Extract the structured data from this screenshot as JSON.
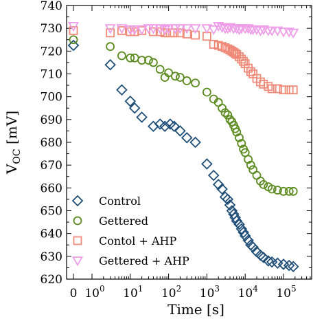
{
  "chart_data": {
    "type": "scatter",
    "xscale": "log (symlog, linear near 0)",
    "xlabel": "Time [s]",
    "ylabel_base": "V",
    "ylabel_sub": "OC",
    "ylabel_unit": " [mV]",
    "ylim": [
      620,
      740
    ],
    "xlim": [
      -0.6,
      200000
    ],
    "y_ticks": [
      "620",
      "630",
      "640",
      "650",
      "660",
      "670",
      "680",
      "690",
      "700",
      "710",
      "720",
      "730",
      "740"
    ],
    "x_ticks": [
      {
        "base": "0",
        "exp": ""
      },
      {
        "base": "10",
        "exp": "0"
      },
      {
        "base": "10",
        "exp": "1"
      },
      {
        "base": "10",
        "exp": "2"
      },
      {
        "base": "10",
        "exp": "3"
      },
      {
        "base": "10",
        "exp": "4"
      },
      {
        "base": "10",
        "exp": "5"
      }
    ],
    "legend_position": "lower-left",
    "series": [
      {
        "name": "Control",
        "marker": "diamond",
        "color": "#1f4e79",
        "points": [
          [
            0,
            722.5
          ],
          [
            3,
            714
          ],
          [
            6,
            703
          ],
          [
            10,
            698
          ],
          [
            13,
            695
          ],
          [
            20,
            691
          ],
          [
            40,
            687
          ],
          [
            60,
            688
          ],
          [
            80,
            687
          ],
          [
            110,
            688
          ],
          [
            140,
            687
          ],
          [
            200,
            685
          ],
          [
            300,
            682
          ],
          [
            500,
            680
          ],
          [
            1000,
            670.5
          ],
          [
            1500,
            665.5
          ],
          [
            2000,
            661.5
          ],
          [
            2500,
            659.5
          ],
          [
            3000,
            656
          ],
          [
            3500,
            655
          ],
          [
            4000,
            652.5
          ],
          [
            4500,
            650
          ],
          [
            5000,
            648.5
          ],
          [
            5500,
            647
          ],
          [
            6000,
            645.5
          ],
          [
            7000,
            644
          ],
          [
            8000,
            642
          ],
          [
            9000,
            640.5
          ],
          [
            10000,
            639
          ],
          [
            12000,
            637
          ],
          [
            14000,
            635
          ],
          [
            16000,
            634
          ],
          [
            20000,
            632
          ],
          [
            25000,
            630.5
          ],
          [
            30000,
            629.5
          ],
          [
            40000,
            628
          ],
          [
            50000,
            627.5
          ],
          [
            70000,
            627
          ],
          [
            100000,
            626.5
          ],
          [
            140000,
            626
          ],
          [
            180000,
            625.5
          ]
        ]
      },
      {
        "name": "Gettered",
        "marker": "circle",
        "color": "#5a8a1e",
        "points": [
          [
            0,
            725
          ],
          [
            3,
            722
          ],
          [
            6,
            718
          ],
          [
            10,
            717
          ],
          [
            13,
            717
          ],
          [
            20,
            716
          ],
          [
            30,
            716
          ],
          [
            40,
            715
          ],
          [
            60,
            712
          ],
          [
            80,
            708.5
          ],
          [
            100,
            710.5
          ],
          [
            150,
            709
          ],
          [
            200,
            708.5
          ],
          [
            300,
            707
          ],
          [
            500,
            706
          ],
          [
            1000,
            702
          ],
          [
            1500,
            699
          ],
          [
            2000,
            697.5
          ],
          [
            2500,
            695
          ],
          [
            3000,
            693
          ],
          [
            3500,
            692
          ],
          [
            4000,
            690
          ],
          [
            4500,
            689
          ],
          [
            5000,
            687.5
          ],
          [
            5500,
            686
          ],
          [
            6000,
            684.5
          ],
          [
            7000,
            682
          ],
          [
            8000,
            679.5
          ],
          [
            9000,
            677
          ],
          [
            10000,
            675.5
          ],
          [
            12000,
            672.5
          ],
          [
            14000,
            670
          ],
          [
            16000,
            668
          ],
          [
            20000,
            665.5
          ],
          [
            25000,
            663
          ],
          [
            30000,
            661.5
          ],
          [
            40000,
            660.5
          ],
          [
            50000,
            659.5
          ],
          [
            70000,
            659
          ],
          [
            100000,
            658.5
          ],
          [
            140000,
            658.5
          ],
          [
            180000,
            658.5
          ]
        ]
      },
      {
        "name": "Contol + AHP",
        "marker": "square",
        "color": "#f08a78",
        "points": [
          [
            0,
            729
          ],
          [
            3,
            728
          ],
          [
            6,
            729
          ],
          [
            10,
            728.5
          ],
          [
            13,
            728.5
          ],
          [
            20,
            729
          ],
          [
            40,
            728.5
          ],
          [
            60,
            728.5
          ],
          [
            80,
            728
          ],
          [
            110,
            728
          ],
          [
            140,
            728
          ],
          [
            200,
            728
          ],
          [
            300,
            727.5
          ],
          [
            500,
            727
          ],
          [
            1000,
            726.5
          ],
          [
            1500,
            723
          ],
          [
            2000,
            722.5
          ],
          [
            2500,
            722
          ],
          [
            3000,
            721.5
          ],
          [
            3500,
            721
          ],
          [
            4000,
            720.5
          ],
          [
            4500,
            720
          ],
          [
            5000,
            719.5
          ],
          [
            5500,
            719
          ],
          [
            6000,
            718.5
          ],
          [
            7000,
            717.5
          ],
          [
            8000,
            716.5
          ],
          [
            9000,
            715.5
          ],
          [
            10000,
            714.5
          ],
          [
            12000,
            712.5
          ],
          [
            14000,
            711
          ],
          [
            16000,
            710
          ],
          [
            20000,
            708
          ],
          [
            25000,
            706.5
          ],
          [
            30000,
            705.5
          ],
          [
            40000,
            704.5
          ],
          [
            50000,
            703.5
          ],
          [
            70000,
            703.5
          ],
          [
            100000,
            703
          ],
          [
            140000,
            703
          ],
          [
            180000,
            703
          ]
        ]
      },
      {
        "name": "Gettered + AHP",
        "marker": "triangle-down",
        "color": "#ee9ee8",
        "points": [
          [
            0,
            731
          ],
          [
            3,
            730
          ],
          [
            6,
            730
          ],
          [
            10,
            729.5
          ],
          [
            13,
            729.5
          ],
          [
            20,
            729.5
          ],
          [
            30,
            730
          ],
          [
            40,
            730
          ],
          [
            60,
            730
          ],
          [
            80,
            729.5
          ],
          [
            100,
            730
          ],
          [
            150,
            730
          ],
          [
            200,
            730
          ],
          [
            300,
            730
          ],
          [
            500,
            730
          ],
          [
            1000,
            730
          ],
          [
            1500,
            729.5
          ],
          [
            2000,
            731
          ],
          [
            2500,
            730.5
          ],
          [
            3000,
            730
          ],
          [
            3500,
            730
          ],
          [
            4000,
            730.5
          ],
          [
            5000,
            730
          ],
          [
            6000,
            730
          ],
          [
            7000,
            729.5
          ],
          [
            8000,
            730
          ],
          [
            10000,
            730
          ],
          [
            12000,
            730
          ],
          [
            14000,
            729.5
          ],
          [
            16000,
            729.5
          ],
          [
            20000,
            729.5
          ],
          [
            25000,
            729
          ],
          [
            30000,
            729.5
          ],
          [
            40000,
            729
          ],
          [
            50000,
            729
          ],
          [
            70000,
            729
          ],
          [
            100000,
            728.5
          ],
          [
            140000,
            728.5
          ],
          [
            180000,
            728
          ]
        ]
      }
    ]
  }
}
